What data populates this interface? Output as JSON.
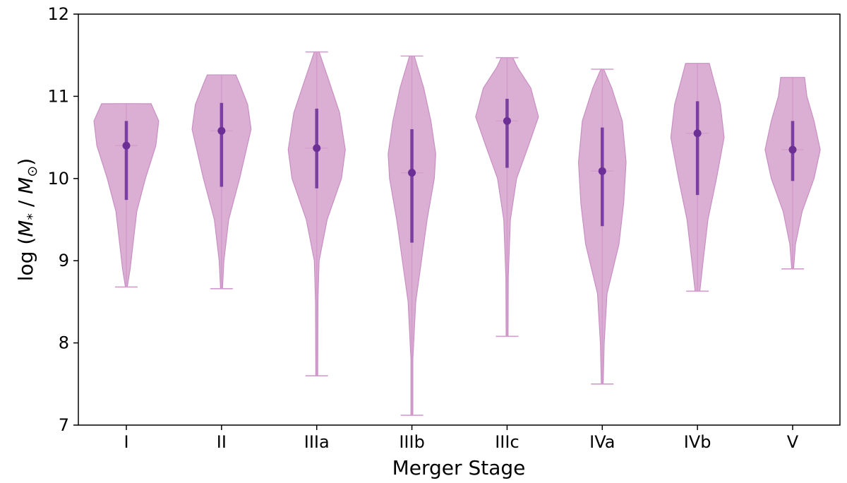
{
  "chart_data": {
    "type": "violin",
    "xlabel": "Merger Stage",
    "ylabel": "log (M* / M⊙)",
    "ylabel_parts": {
      "prefix": "log (",
      "m1": "M",
      "sub1": "*",
      "sep": " / ",
      "m2": "M",
      "sub2": "⊙",
      "suffix": ")"
    },
    "ylim": [
      7,
      12
    ],
    "yticks": [
      7,
      8,
      9,
      10,
      11,
      12
    ],
    "categories": [
      "I",
      "II",
      "IIIa",
      "IIIb",
      "IIIc",
      "IVa",
      "IVb",
      "V"
    ],
    "violins": [
      {
        "label": "I",
        "min": 8.68,
        "max": 10.91,
        "median": 10.4,
        "q1": 9.74,
        "q3": 10.7,
        "profile": [
          [
            8.68,
            0.02
          ],
          [
            8.9,
            0.08
          ],
          [
            9.2,
            0.14
          ],
          [
            9.6,
            0.22
          ],
          [
            10.0,
            0.4
          ],
          [
            10.4,
            0.62
          ],
          [
            10.7,
            0.68
          ],
          [
            10.91,
            0.52
          ]
        ]
      },
      {
        "label": "II",
        "min": 8.66,
        "max": 11.26,
        "median": 10.58,
        "q1": 9.9,
        "q3": 10.92,
        "profile": [
          [
            8.66,
            0.02
          ],
          [
            9.0,
            0.05
          ],
          [
            9.5,
            0.15
          ],
          [
            10.0,
            0.38
          ],
          [
            10.3,
            0.5
          ],
          [
            10.6,
            0.62
          ],
          [
            10.9,
            0.55
          ],
          [
            11.15,
            0.38
          ],
          [
            11.26,
            0.3
          ]
        ]
      },
      {
        "label": "IIIa",
        "min": 7.6,
        "max": 11.54,
        "median": 10.37,
        "q1": 9.88,
        "q3": 10.85,
        "profile": [
          [
            7.6,
            0.02
          ],
          [
            8.5,
            0.025
          ],
          [
            9.0,
            0.05
          ],
          [
            9.5,
            0.22
          ],
          [
            10.0,
            0.52
          ],
          [
            10.35,
            0.6
          ],
          [
            10.8,
            0.48
          ],
          [
            11.2,
            0.25
          ],
          [
            11.54,
            0.05
          ]
        ]
      },
      {
        "label": "IIIb",
        "min": 7.12,
        "max": 11.49,
        "median": 10.07,
        "q1": 9.22,
        "q3": 10.6,
        "profile": [
          [
            7.12,
            0.02
          ],
          [
            7.8,
            0.02
          ],
          [
            8.5,
            0.08
          ],
          [
            9.0,
            0.2
          ],
          [
            9.5,
            0.32
          ],
          [
            10.0,
            0.47
          ],
          [
            10.3,
            0.5
          ],
          [
            10.7,
            0.4
          ],
          [
            11.1,
            0.25
          ],
          [
            11.49,
            0.05
          ]
        ]
      },
      {
        "label": "IIIc",
        "min": 8.08,
        "max": 11.47,
        "median": 10.7,
        "q1": 10.13,
        "q3": 10.97,
        "profile": [
          [
            8.08,
            0.02
          ],
          [
            8.8,
            0.025
          ],
          [
            9.5,
            0.07
          ],
          [
            10.0,
            0.2
          ],
          [
            10.4,
            0.45
          ],
          [
            10.75,
            0.66
          ],
          [
            11.1,
            0.5
          ],
          [
            11.35,
            0.22
          ],
          [
            11.47,
            0.12
          ]
        ]
      },
      {
        "label": "IVa",
        "min": 7.5,
        "max": 11.33,
        "median": 10.09,
        "q1": 9.42,
        "q3": 10.62,
        "profile": [
          [
            7.5,
            0.02
          ],
          [
            8.0,
            0.04
          ],
          [
            8.6,
            0.1
          ],
          [
            9.2,
            0.35
          ],
          [
            9.7,
            0.45
          ],
          [
            10.2,
            0.5
          ],
          [
            10.7,
            0.42
          ],
          [
            11.1,
            0.2
          ],
          [
            11.33,
            0.03
          ]
        ]
      },
      {
        "label": "IVb",
        "min": 8.63,
        "max": 11.4,
        "median": 10.55,
        "q1": 9.8,
        "q3": 10.94,
        "profile": [
          [
            8.63,
            0.05
          ],
          [
            9.0,
            0.12
          ],
          [
            9.5,
            0.22
          ],
          [
            10.0,
            0.4
          ],
          [
            10.5,
            0.56
          ],
          [
            10.9,
            0.48
          ],
          [
            11.2,
            0.34
          ],
          [
            11.4,
            0.25
          ]
        ]
      },
      {
        "label": "V",
        "min": 8.9,
        "max": 11.23,
        "median": 10.35,
        "q1": 9.97,
        "q3": 10.7,
        "profile": [
          [
            8.9,
            0.02
          ],
          [
            9.2,
            0.06
          ],
          [
            9.6,
            0.2
          ],
          [
            10.0,
            0.45
          ],
          [
            10.35,
            0.58
          ],
          [
            10.7,
            0.45
          ],
          [
            11.0,
            0.3
          ],
          [
            11.23,
            0.25
          ]
        ]
      }
    ],
    "colors": {
      "violin_fill": "#d8abd1",
      "violin_edge": "#c98fc3",
      "whisker": "#d49bcd",
      "box": "#7a3fa0",
      "median_dot": "#6b2f96",
      "axis": "#000000"
    },
    "grid": false,
    "legend": "none"
  }
}
